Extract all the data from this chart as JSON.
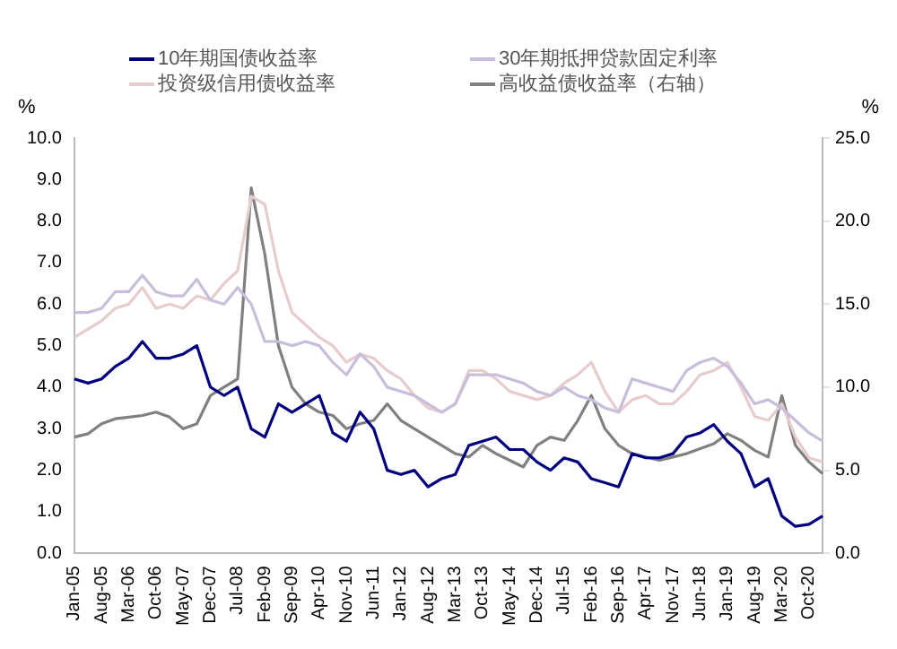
{
  "chart_data": {
    "type": "line",
    "ylabel": "%",
    "y2label": "%",
    "categories": [
      "Jan-05",
      null,
      "Aug-05",
      null,
      "Mar-06",
      null,
      "Oct-06",
      null,
      "May-07",
      null,
      "Dec-07",
      null,
      "Jul-08",
      null,
      "Feb-09",
      null,
      "Sep-09",
      null,
      "Apr-10",
      null,
      "Nov-10",
      null,
      "Jun-11",
      null,
      "Jan-12",
      null,
      "Aug-12",
      null,
      "Mar-13",
      null,
      "Oct-13",
      null,
      "May-14",
      null,
      "Dec-14",
      null,
      "Jul-15",
      null,
      "Feb-16",
      null,
      "Sep-16",
      null,
      "Apr-17",
      null,
      "Nov-17",
      null,
      "Jun-18",
      null,
      "Jan-19",
      null,
      "Aug-19",
      null,
      "Mar-20",
      null,
      "Oct-20",
      null
    ],
    "series": [
      {
        "name": "10年期国债收益率",
        "color": "#00007f",
        "values": [
          4.2,
          4.1,
          4.2,
          4.5,
          4.7,
          5.1,
          4.7,
          4.7,
          4.8,
          5.0,
          4.0,
          3.8,
          4.0,
          3.0,
          2.8,
          3.6,
          3.4,
          3.6,
          3.8,
          2.9,
          2.7,
          3.4,
          3.0,
          2.0,
          1.9,
          2.0,
          1.6,
          1.8,
          1.9,
          2.6,
          2.7,
          2.8,
          2.5,
          2.5,
          2.2,
          2.0,
          2.3,
          2.2,
          1.8,
          1.7,
          1.6,
          2.4,
          2.3,
          2.3,
          2.4,
          2.8,
          2.9,
          3.1,
          2.7,
          2.4,
          1.6,
          1.8,
          0.9,
          0.65,
          0.7,
          0.9
        ]
      },
      {
        "name": "30年期抵押贷款固定利率",
        "color": "#c8bedc",
        "values": [
          5.8,
          5.8,
          5.9,
          6.3,
          6.3,
          6.7,
          6.3,
          6.2,
          6.2,
          6.6,
          6.1,
          6.0,
          6.4,
          6.0,
          5.1,
          5.1,
          5.0,
          5.1,
          5.0,
          4.6,
          4.3,
          4.8,
          4.5,
          4.0,
          3.9,
          3.8,
          3.6,
          3.4,
          3.6,
          4.3,
          4.3,
          4.3,
          4.2,
          4.1,
          3.9,
          3.8,
          4.0,
          3.8,
          3.7,
          3.5,
          3.4,
          4.2,
          4.1,
          4.0,
          3.9,
          4.4,
          4.6,
          4.7,
          4.5,
          4.1,
          3.6,
          3.7,
          3.5,
          3.2,
          2.9,
          2.7
        ]
      },
      {
        "name": "投资级信用债收益率",
        "color": "#e6cccc",
        "values": [
          5.2,
          5.4,
          5.6,
          5.9,
          6.0,
          6.4,
          5.9,
          6.0,
          5.9,
          6.2,
          6.1,
          6.5,
          6.8,
          8.6,
          8.4,
          6.8,
          5.8,
          5.5,
          5.2,
          5.0,
          4.6,
          4.8,
          4.7,
          4.4,
          4.2,
          3.8,
          3.5,
          3.4,
          3.6,
          4.4,
          4.4,
          4.2,
          3.9,
          3.8,
          3.7,
          3.8,
          4.1,
          4.3,
          4.6,
          3.9,
          3.4,
          3.7,
          3.8,
          3.6,
          3.6,
          3.9,
          4.3,
          4.4,
          4.6,
          4.0,
          3.3,
          3.2,
          3.6,
          2.8,
          2.3,
          2.2
        ]
      },
      {
        "name": "高收益债收益率（右轴）",
        "color": "#808080",
        "axis": "y2",
        "values": [
          7.0,
          7.2,
          7.8,
          8.1,
          8.2,
          8.3,
          8.5,
          8.2,
          7.5,
          7.8,
          9.5,
          10.0,
          10.5,
          22.0,
          18.0,
          12.5,
          10.0,
          9.0,
          8.5,
          8.3,
          7.5,
          7.8,
          8.0,
          9.0,
          8.0,
          7.5,
          7.0,
          6.5,
          6.0,
          5.8,
          6.5,
          6.0,
          5.6,
          5.2,
          6.5,
          7.0,
          6.8,
          8.0,
          9.5,
          7.5,
          6.5,
          6.0,
          5.8,
          5.6,
          5.8,
          6.0,
          6.3,
          6.6,
          7.2,
          6.8,
          6.2,
          5.8,
          9.5,
          6.5,
          5.5,
          4.8
        ]
      }
    ],
    "ylim": [
      0,
      10
    ],
    "yticks": [
      {
        "value": 0,
        "label": "0.0"
      },
      {
        "value": 1,
        "label": "1.0"
      },
      {
        "value": 2,
        "label": "2.0"
      },
      {
        "value": 3,
        "label": "3.0"
      },
      {
        "value": 4,
        "label": "4.0"
      },
      {
        "value": 5,
        "label": "5.0"
      },
      {
        "value": 6,
        "label": "6.0"
      },
      {
        "value": 7,
        "label": "7.0"
      },
      {
        "value": 8,
        "label": "8.0"
      },
      {
        "value": 9,
        "label": "9.0"
      },
      {
        "value": 10,
        "label": "10.0"
      }
    ],
    "y2lim": [
      0,
      25
    ],
    "y2ticks": [
      {
        "value": 0,
        "label": "0.0"
      },
      {
        "value": 5,
        "label": "5.0"
      },
      {
        "value": 10,
        "label": "10.0"
      },
      {
        "value": 15,
        "label": "15.0"
      },
      {
        "value": 20,
        "label": "20.0"
      },
      {
        "value": 25,
        "label": "25.0"
      }
    ],
    "grid": false,
    "legend": "top",
    "marker": "none",
    "line_style": "solid"
  }
}
